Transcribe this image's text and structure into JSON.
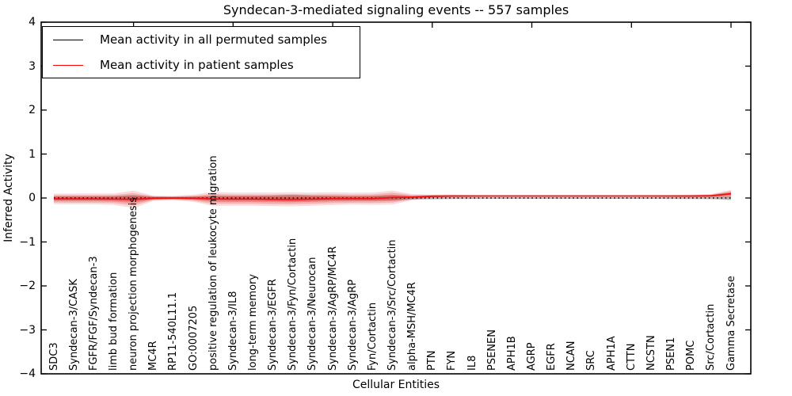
{
  "chart_data": {
    "type": "line",
    "title": "Syndecan-3-mediated signaling events -- 557 samples",
    "xlabel": "Cellular Entities",
    "ylabel": "Inferred Activity",
    "ylim": [
      -4,
      4
    ],
    "yticks": [
      4,
      3,
      2,
      1,
      0,
      -1,
      -2,
      -3,
      -4
    ],
    "ytick_labels": [
      "4",
      "3",
      "2",
      "1",
      "0",
      "−1",
      "−2",
      "−3",
      "−4"
    ],
    "x_major_tick_indices": [
      4,
      9,
      14,
      19,
      24,
      29,
      34
    ],
    "grid": false,
    "legend_position": "upper left",
    "legend": [
      {
        "label": "Mean activity in all permuted samples",
        "color": "#000000"
      },
      {
        "label": "Mean activity in patient samples",
        "color": "#ff0000"
      }
    ],
    "categories": [
      "SDC3",
      "Syndecan-3/CASK",
      "FGFR/FGF/Syndecan-3",
      "limb bud formation",
      "neuron projection morphogenesis",
      "MC4R",
      "RP11-540L11.1",
      "GO:0007205",
      "positive regulation of leukocyte migration",
      "Syndecan-3/IL8",
      "long-term memory",
      "Syndecan-3/EGFR",
      "Syndecan-3/Fyn/Cortactin",
      "Syndecan-3/Neurocan",
      "Syndecan-3/AgRP/MC4R",
      "Syndecan-3/AgRP",
      "Fyn/Cortactin",
      "Syndecan-3/Src/Cortactin",
      "alpha-MSH/MC4R",
      "PTN",
      "FYN",
      "IL8",
      "PSENEN",
      "APH1B",
      "AGRP",
      "EGFR",
      "NCAN",
      "SRC",
      "APH1A",
      "CTTN",
      "NCSTN",
      "PSEN1",
      "POMC",
      "Src/Cortactin",
      "Gamma Secretase"
    ],
    "series": [
      {
        "name": "Mean activity in all permuted samples",
        "color": "#000000",
        "linestyle": "dotted",
        "values": [
          0,
          0,
          0,
          0,
          0,
          0,
          0,
          0,
          0,
          0,
          0,
          0,
          0,
          0,
          0,
          0,
          0,
          0,
          0,
          0,
          0,
          0,
          0,
          0,
          0,
          0,
          0,
          0,
          0,
          0,
          0,
          0,
          0,
          0,
          0
        ],
        "spread": [
          0.04,
          0.04,
          0.04,
          0.045,
          0.065,
          0.03,
          0.025,
          0.03,
          0.05,
          0.05,
          0.05,
          0.06,
          0.075,
          0.06,
          0.05,
          0.045,
          0.05,
          0.06,
          0.035,
          0.028,
          0.022,
          0.02,
          0.018,
          0.018,
          0.018,
          0.018,
          0.018,
          0.018,
          0.018,
          0.018,
          0.018,
          0.02,
          0.022,
          0.026,
          0.045
        ],
        "band_color": "rgba(115,115,115,0.5)"
      },
      {
        "name": "Mean activity in patient samples",
        "color": "#f01313",
        "linestyle": "solid",
        "values": [
          -0.02,
          -0.02,
          -0.02,
          -0.025,
          -0.03,
          -0.005,
          0,
          -0.005,
          -0.02,
          -0.025,
          -0.025,
          -0.03,
          -0.03,
          -0.025,
          -0.015,
          -0.015,
          -0.015,
          0.01,
          0.02,
          0.04,
          0.045,
          0.045,
          0.045,
          0.045,
          0.045,
          0.045,
          0.045,
          0.045,
          0.045,
          0.045,
          0.045,
          0.045,
          0.045,
          0.05,
          0.095
        ],
        "spread": [
          0.12,
          0.125,
          0.125,
          0.13,
          0.2,
          0.06,
          0.05,
          0.08,
          0.16,
          0.15,
          0.15,
          0.155,
          0.16,
          0.15,
          0.145,
          0.135,
          0.14,
          0.16,
          0.07,
          0.04,
          0.03,
          0.025,
          0.022,
          0.022,
          0.022,
          0.022,
          0.022,
          0.022,
          0.022,
          0.022,
          0.024,
          0.026,
          0.03,
          0.04,
          0.09
        ],
        "band_base_color": "224,60,60",
        "band_levels": [
          {
            "scale": 1.0,
            "alpha": 0.18
          },
          {
            "scale": 0.7,
            "alpha": 0.26
          },
          {
            "scale": 0.42,
            "alpha": 0.4
          }
        ]
      }
    ]
  }
}
